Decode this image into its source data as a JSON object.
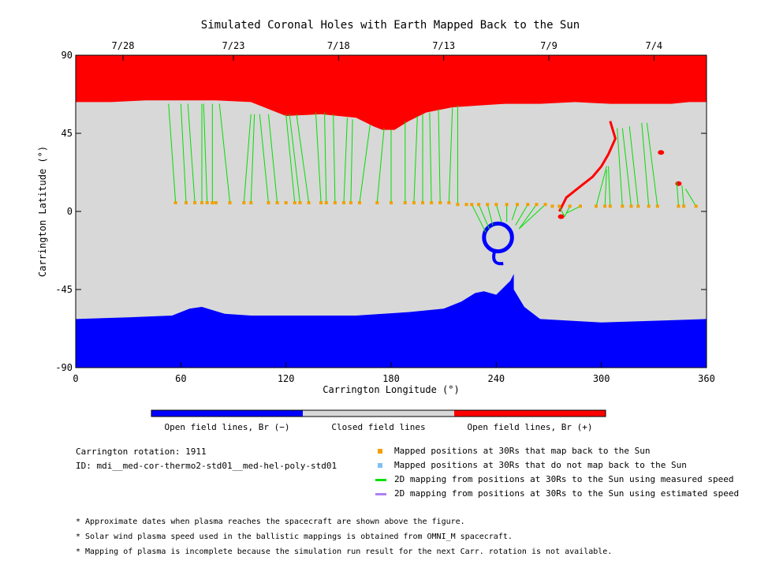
{
  "chart_data": {
    "type": "map",
    "title": "Simulated Coronal Holes with Earth Mapped Back to the Sun",
    "xlabel": "Carrington Longitude (°)",
    "ylabel": "Carrington Latitude (°)",
    "xlim": [
      0,
      360
    ],
    "ylim": [
      -90,
      90
    ],
    "xticks": [
      "0",
      "60",
      "120",
      "180",
      "240",
      "300",
      "360"
    ],
    "yticks": [
      "90",
      "45",
      "0",
      "-45",
      "-90"
    ],
    "top_axis_dates": [
      {
        "lon": 27,
        "label": "7/28"
      },
      {
        "lon": 90,
        "label": "7/23"
      },
      {
        "lon": 150,
        "label": "7/18"
      },
      {
        "lon": 210,
        "label": "7/13"
      },
      {
        "lon": 270,
        "label": "7/9"
      },
      {
        "lon": 330,
        "label": "7/4"
      }
    ],
    "colors": {
      "open_negative": "#0000ff",
      "closed": "#d8d8d8",
      "open_positive": "#ff0000",
      "mapped": "#f0a000",
      "unmapped": "#80c0f0",
      "measured": "#00e000",
      "estimated": "#b080f0"
    },
    "north_boundary": [
      [
        0,
        63
      ],
      [
        20,
        63
      ],
      [
        40,
        64
      ],
      [
        60,
        64
      ],
      [
        80,
        64
      ],
      [
        100,
        63
      ],
      [
        120,
        55
      ],
      [
        140,
        56
      ],
      [
        160,
        54
      ],
      [
        170,
        49
      ],
      [
        175,
        47
      ],
      [
        182,
        47
      ],
      [
        190,
        52
      ],
      [
        200,
        57
      ],
      [
        215,
        60
      ],
      [
        230,
        61
      ],
      [
        245,
        62
      ],
      [
        265,
        62
      ],
      [
        285,
        63
      ],
      [
        305,
        62
      ],
      [
        325,
        62
      ],
      [
        340,
        62
      ],
      [
        350,
        63
      ],
      [
        360,
        63
      ]
    ],
    "south_boundary": [
      [
        0,
        -62
      ],
      [
        30,
        -61
      ],
      [
        55,
        -60
      ],
      [
        65,
        -56
      ],
      [
        72,
        -55
      ],
      [
        85,
        -59
      ],
      [
        100,
        -60
      ],
      [
        130,
        -60
      ],
      [
        160,
        -60
      ],
      [
        190,
        -58
      ],
      [
        210,
        -56
      ],
      [
        220,
        -52
      ],
      [
        228,
        -47
      ],
      [
        233,
        -46
      ],
      [
        240,
        -48
      ],
      [
        248,
        -40
      ],
      [
        250,
        -36
      ],
      [
        250,
        -45
      ],
      [
        256,
        -55
      ],
      [
        265,
        -62
      ],
      [
        300,
        -64
      ],
      [
        330,
        -63
      ],
      [
        360,
        -62
      ]
    ],
    "negative_hole_center": [
      241,
      -15
    ],
    "negative_hole_radius": 8,
    "positive_channel": [
      [
        305,
        52
      ],
      [
        308,
        42
      ],
      [
        304,
        33
      ],
      [
        300,
        26
      ],
      [
        295,
        20
      ],
      [
        290,
        16
      ],
      [
        285,
        12
      ],
      [
        280,
        8
      ],
      [
        278,
        4
      ],
      [
        276,
        0
      ]
    ],
    "positive_patches": [
      [
        334,
        34
      ],
      [
        344,
        16
      ],
      [
        277,
        -3
      ]
    ],
    "mapped_points": [
      [
        57,
        5
      ],
      [
        63,
        5
      ],
      [
        68,
        5
      ],
      [
        72,
        5
      ],
      [
        75,
        5
      ],
      [
        78,
        5
      ],
      [
        80,
        5
      ],
      [
        88,
        5
      ],
      [
        96,
        5
      ],
      [
        100,
        5
      ],
      [
        110,
        5
      ],
      [
        115,
        5
      ],
      [
        120,
        5
      ],
      [
        125,
        5
      ],
      [
        128,
        5
      ],
      [
        133,
        5
      ],
      [
        140,
        5
      ],
      [
        143,
        5
      ],
      [
        148,
        5
      ],
      [
        153,
        5
      ],
      [
        157,
        5
      ],
      [
        162,
        5
      ],
      [
        172,
        5
      ],
      [
        180,
        5
      ],
      [
        188,
        5
      ],
      [
        193,
        5
      ],
      [
        198,
        5
      ],
      [
        203,
        5
      ],
      [
        208,
        5
      ],
      [
        213,
        5
      ],
      [
        218,
        4
      ],
      [
        223,
        4
      ],
      [
        226,
        4
      ],
      [
        230,
        4
      ],
      [
        235,
        4
      ],
      [
        240,
        4
      ],
      [
        246,
        4
      ],
      [
        252,
        4
      ],
      [
        258,
        4
      ],
      [
        263,
        4
      ],
      [
        268,
        4
      ],
      [
        272,
        3
      ],
      [
        276,
        3
      ],
      [
        282,
        3
      ],
      [
        288,
        3
      ],
      [
        297,
        3
      ],
      [
        302,
        3
      ],
      [
        305,
        3
      ],
      [
        312,
        3
      ],
      [
        317,
        3
      ],
      [
        321,
        3
      ],
      [
        327,
        3
      ],
      [
        332,
        3
      ],
      [
        344,
        3
      ],
      [
        347,
        3
      ],
      [
        354,
        3
      ]
    ],
    "mapping_lines": [
      [
        57,
        5,
        53,
        62
      ],
      [
        63,
        5,
        60,
        62
      ],
      [
        68,
        5,
        64,
        62
      ],
      [
        72,
        5,
        72,
        62
      ],
      [
        75,
        5,
        73,
        62
      ],
      [
        78,
        5,
        78,
        62
      ],
      [
        88,
        5,
        82,
        62
      ],
      [
        96,
        5,
        100,
        56
      ],
      [
        100,
        5,
        102,
        56
      ],
      [
        110,
        5,
        105,
        56
      ],
      [
        115,
        5,
        110,
        56
      ],
      [
        125,
        5,
        120,
        56
      ],
      [
        128,
        5,
        122,
        56
      ],
      [
        133,
        5,
        126,
        56
      ],
      [
        140,
        5,
        137,
        57
      ],
      [
        143,
        5,
        142,
        57
      ],
      [
        148,
        5,
        147,
        56
      ],
      [
        153,
        5,
        155,
        54
      ],
      [
        157,
        5,
        158,
        53
      ],
      [
        162,
        5,
        168,
        50
      ],
      [
        172,
        5,
        176,
        48
      ],
      [
        180,
        5,
        180,
        47
      ],
      [
        188,
        5,
        188,
        52
      ],
      [
        193,
        5,
        195,
        55
      ],
      [
        198,
        5,
        198,
        56
      ],
      [
        203,
        5,
        202,
        57
      ],
      [
        208,
        5,
        207,
        59
      ],
      [
        213,
        5,
        215,
        60
      ],
      [
        218,
        4,
        218,
        61
      ],
      [
        226,
        4,
        234,
        -12
      ],
      [
        230,
        4,
        236,
        -10
      ],
      [
        235,
        4,
        238,
        -8
      ],
      [
        240,
        4,
        243,
        -6
      ],
      [
        246,
        4,
        246,
        -6
      ],
      [
        252,
        4,
        249,
        -5
      ],
      [
        258,
        4,
        251,
        -8
      ],
      [
        263,
        4,
        253,
        -10
      ],
      [
        268,
        4,
        253,
        -10
      ],
      [
        276,
        3,
        279,
        -3
      ],
      [
        282,
        3,
        279,
        -3
      ],
      [
        288,
        3,
        280,
        -1
      ],
      [
        297,
        3,
        303,
        26
      ],
      [
        302,
        3,
        303,
        24
      ],
      [
        305,
        3,
        304,
        26
      ],
      [
        312,
        3,
        309,
        48
      ],
      [
        317,
        3,
        312,
        48
      ],
      [
        321,
        3,
        316,
        49
      ],
      [
        327,
        3,
        323,
        51
      ],
      [
        332,
        3,
        326,
        51
      ],
      [
        344,
        3,
        343,
        17
      ],
      [
        347,
        3,
        346,
        15
      ],
      [
        354,
        3,
        348,
        13
      ]
    ]
  },
  "legend": {
    "colorbar": [
      {
        "label": "Open field lines, Br (−)",
        "color": "#0000ff"
      },
      {
        "label": "Closed field lines",
        "color": "#d8d8d8"
      },
      {
        "label": "Open field lines, Br (+)",
        "color": "#ff0000"
      }
    ],
    "items": [
      {
        "label": "Mapped positions at 30Rs that map back to the Sun",
        "kind": "square",
        "color": "#f0a000"
      },
      {
        "label": "Mapped positions at 30Rs that do not map back to the Sun",
        "kind": "square",
        "color": "#80c0f0"
      },
      {
        "label": "2D mapping from positions at 30Rs to the Sun using measured speed",
        "kind": "line",
        "color": "#00e000"
      },
      {
        "label": "2D mapping from positions at 30Rs to the Sun using estimated speed",
        "kind": "line",
        "color": "#b080f0"
      }
    ]
  },
  "info": {
    "rotation": "Carrington rotation: 1911",
    "id": "ID: mdi__med-cor-thermo2-std01__med-hel-poly-std01"
  },
  "notes": [
    "* Approximate dates when plasma reaches the spacecraft are shown above the figure.",
    "* Solar wind plasma speed used in the ballistic mappings is obtained from OMNI_M spacecraft.",
    "* Mapping of plasma is incomplete because the simulation run result for the next Carr. rotation is not available."
  ]
}
